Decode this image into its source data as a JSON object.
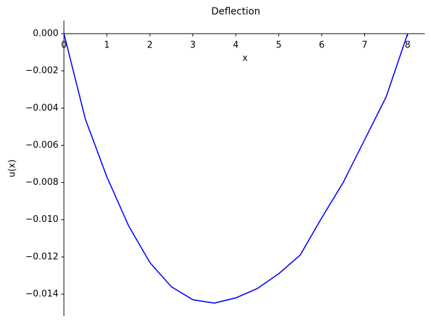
{
  "chart_data": {
    "type": "line",
    "title": "Deflection",
    "xlabel": "x",
    "ylabel": "u(x)",
    "x": [
      0,
      0.5,
      1,
      1.5,
      2,
      2.5,
      3,
      3.5,
      4,
      4.5,
      5,
      5.5,
      6,
      6.5,
      7,
      7.5,
      8
    ],
    "series": [
      {
        "name": "u(x)",
        "color": "#0000ff",
        "values": [
          0,
          -0.0046,
          -0.0077,
          -0.0103,
          -0.0123,
          -0.0136,
          -0.0143,
          -0.01448,
          -0.0142,
          -0.0137,
          -0.0129,
          -0.0119,
          -0.0099,
          -0.008,
          -0.0057,
          -0.0034,
          0
        ]
      }
    ],
    "xlim": [
      0,
      8.4
    ],
    "ylim": [
      -0.01518,
      0.0007
    ],
    "xticks": [
      0,
      1,
      2,
      3,
      4,
      5,
      6,
      7,
      8
    ],
    "yticks": [
      {
        "value": 0,
        "label": "0.000"
      },
      {
        "value": -0.002,
        "label": "−0.002"
      },
      {
        "value": -0.004,
        "label": "−0.004"
      },
      {
        "value": -0.006,
        "label": "−0.006"
      },
      {
        "value": -0.008,
        "label": "−0.008"
      },
      {
        "value": -0.01,
        "label": "−0.010"
      },
      {
        "value": -0.012,
        "label": "−0.012"
      },
      {
        "value": -0.014,
        "label": "−0.014"
      }
    ],
    "grid": false
  }
}
